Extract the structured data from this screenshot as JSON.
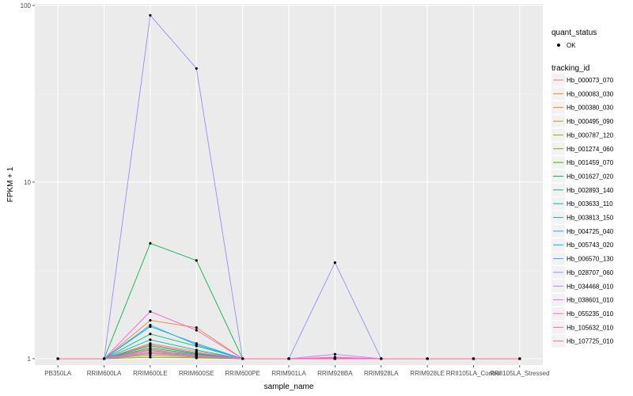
{
  "chart_data": {
    "type": "line",
    "xlabel": "sample_name",
    "ylabel": "FPKM + 1",
    "y_scale": "log10",
    "ylim": [
      0.92,
      102
    ],
    "y_ticks": [
      {
        "value": 1,
        "label": "1"
      },
      {
        "value": 10,
        "label": "10"
      },
      {
        "value": 100,
        "label": "100"
      }
    ],
    "grid": true,
    "legend_position": "right",
    "categories": [
      "PB350LA",
      "RRIM600LA",
      "RRIM600LE",
      "RRIM600SE",
      "RRIM600PE",
      "RRIM901LA",
      "RRIM928BA",
      "RRIM928LA",
      "RRIM928LE",
      "RRII105LA_Control",
      "RRII105LA_Stressed"
    ],
    "quant_status_legend": {
      "title": "quant_status",
      "items": [
        "OK"
      ]
    },
    "series_legend_title": "tracking_id",
    "series": [
      {
        "name": "Hb_000073_070",
        "color": "#F8766D",
        "values": [
          1,
          1,
          1.12,
          1.03,
          1,
          1,
          1,
          1,
          1,
          1,
          1
        ]
      },
      {
        "name": "Hb_000083_030",
        "color": "#EA8331",
        "values": [
          1,
          1,
          1.65,
          1.5,
          1,
          1,
          1,
          1,
          1,
          1,
          1
        ]
      },
      {
        "name": "Hb_000380_030",
        "color": "#D89000",
        "values": [
          1,
          1,
          1.2,
          1.08,
          1,
          1,
          1,
          1,
          1,
          1,
          1
        ]
      },
      {
        "name": "Hb_000495_090",
        "color": "#C09B00",
        "values": [
          1,
          1,
          1.08,
          1.04,
          1,
          1,
          1,
          1,
          1,
          1,
          1
        ]
      },
      {
        "name": "Hb_000787_120",
        "color": "#A3A500",
        "values": [
          1,
          1,
          1.05,
          1.02,
          1,
          1,
          1,
          1,
          1,
          1,
          1
        ]
      },
      {
        "name": "Hb_001274_060",
        "color": "#7CAE00",
        "values": [
          1,
          1,
          1.02,
          1.01,
          1,
          1,
          1,
          1,
          1,
          1,
          1
        ]
      },
      {
        "name": "Hb_001459_070",
        "color": "#39B600",
        "values": [
          1,
          1,
          1.15,
          1.06,
          1,
          1,
          1,
          1,
          1,
          1,
          1
        ]
      },
      {
        "name": "Hb_001627_020",
        "color": "#00BB4E",
        "values": [
          1,
          1,
          4.5,
          3.6,
          1,
          1,
          1,
          1,
          1,
          1,
          1
        ]
      },
      {
        "name": "Hb_002893_140",
        "color": "#00BF7D",
        "values": [
          1,
          1,
          1.38,
          1.18,
          1,
          1,
          1,
          1,
          1,
          1,
          1
        ]
      },
      {
        "name": "Hb_003633_110",
        "color": "#00C1A3",
        "values": [
          1,
          1,
          1.28,
          1.12,
          1,
          1,
          1,
          1,
          1,
          1,
          1
        ]
      },
      {
        "name": "Hb_003813_150",
        "color": "#00BFC4",
        "values": [
          1,
          1,
          1.1,
          1.05,
          1,
          1,
          1,
          1,
          1,
          1,
          1
        ]
      },
      {
        "name": "Hb_004725_040",
        "color": "#00BAE0",
        "values": [
          1,
          1,
          1.52,
          1.22,
          1,
          1,
          1,
          1,
          1,
          1,
          1
        ]
      },
      {
        "name": "Hb_005743_020",
        "color": "#00B0F6",
        "values": [
          1,
          1,
          1.18,
          1.07,
          1,
          1,
          1,
          1,
          1,
          1,
          1
        ]
      },
      {
        "name": "Hb_006570_130",
        "color": "#35A2FF",
        "values": [
          1,
          1,
          1.55,
          1.2,
          1,
          1,
          1,
          1,
          1,
          1,
          1
        ]
      },
      {
        "name": "Hb_028707_060",
        "color": "#9590FF",
        "values": [
          1,
          1,
          88,
          44,
          1,
          1,
          3.5,
          1,
          1,
          1,
          1
        ]
      },
      {
        "name": "Hb_034468_010",
        "color": "#C77CFF",
        "values": [
          1,
          1,
          1.1,
          1.04,
          1,
          1,
          1.06,
          1,
          1,
          1,
          1
        ]
      },
      {
        "name": "Hb_038601_010",
        "color": "#E76BF3",
        "values": [
          1,
          1,
          1.07,
          1.03,
          1,
          1,
          1.02,
          1,
          1,
          1,
          1
        ]
      },
      {
        "name": "Hb_055235_010",
        "color": "#FA62DB",
        "values": [
          1,
          1,
          1.85,
          1.45,
          1,
          1,
          1,
          1,
          1,
          1,
          1
        ]
      },
      {
        "name": "Hb_105632_010",
        "color": "#FF62BC",
        "values": [
          1,
          1,
          1.13,
          1.05,
          1,
          1,
          1.01,
          1,
          1,
          1,
          1
        ]
      },
      {
        "name": "Hb_107725_010",
        "color": "#FF6C91",
        "values": [
          1,
          1,
          1.22,
          1.1,
          1,
          1,
          1,
          1,
          1,
          1,
          1
        ]
      }
    ]
  }
}
